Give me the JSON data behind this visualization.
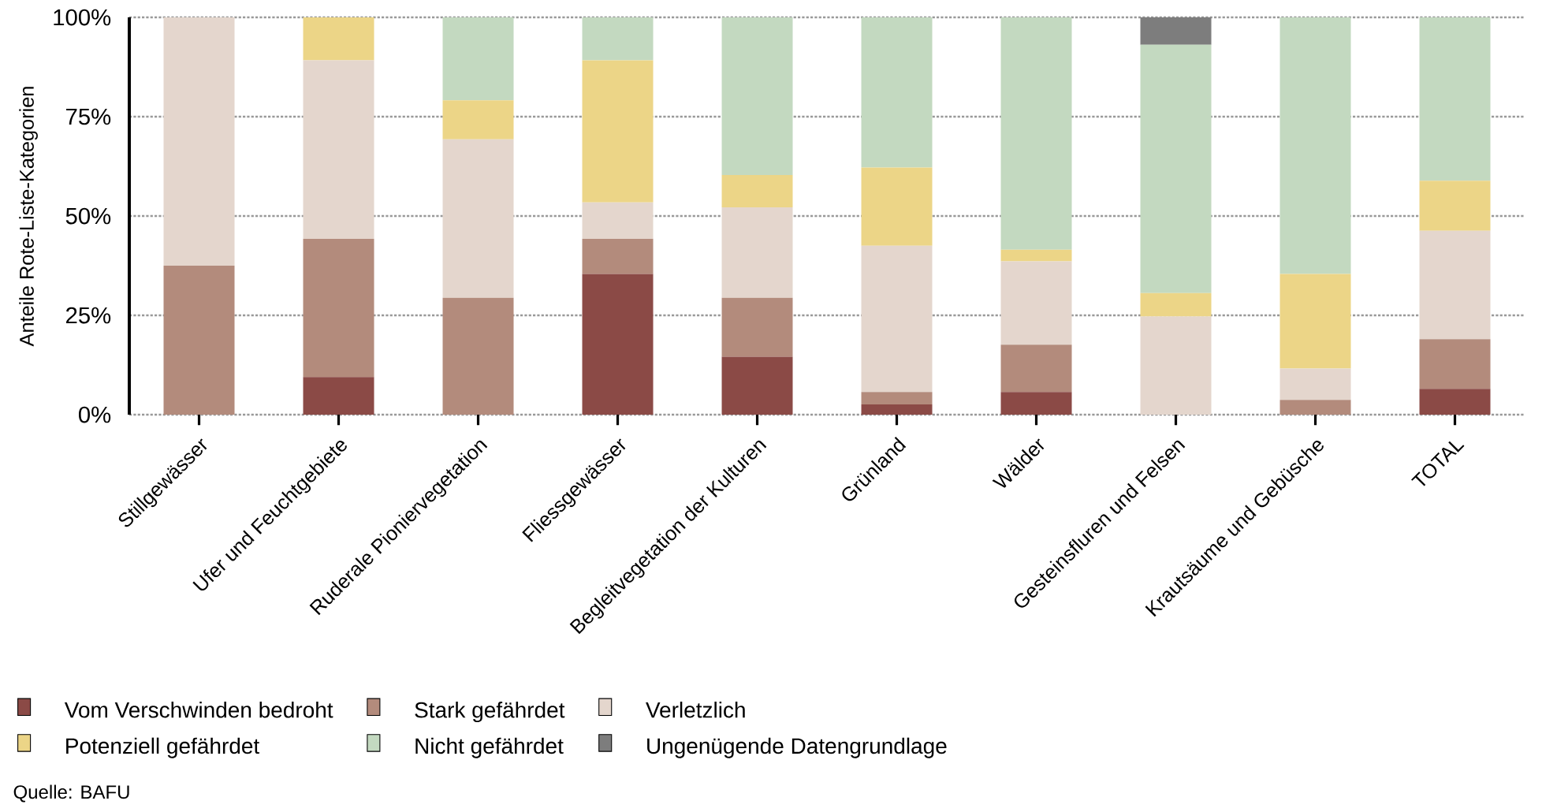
{
  "chart_data": {
    "type": "bar",
    "stacked": true,
    "ylabel": "Anteile Rote-Liste-Kategorien",
    "categories": [
      "Stillgewässer",
      "Ufer und Feuchtgebiete",
      "Ruderale Pioniervegetation",
      "Fliessgewässer",
      "Begleitvegetation der Kulturen",
      "Grünland",
      "Wälder",
      "Gesteinsfluren und Felsen",
      "Krautsäume und Gebüsche",
      "TOTAL"
    ],
    "series": [
      {
        "name": "Vom Verschwinden bedroht",
        "color": "#8b4a46",
        "values": [
          0,
          9.5,
          0,
          35.4,
          14.6,
          2.6,
          5.7,
          0,
          0,
          6.5
        ]
      },
      {
        "name": "Stark gefährdet",
        "color": "#b38b7c",
        "values": [
          37.5,
          34.8,
          29.4,
          8.9,
          14.8,
          3.1,
          11.9,
          0,
          3.7,
          12.5
        ]
      },
      {
        "name": "Verletzlich",
        "color": "#e4d6cd",
        "values": [
          62.5,
          44.9,
          39.9,
          9.1,
          22.8,
          36.8,
          21.0,
          24.7,
          7.9,
          27.3
        ]
      },
      {
        "name": "Potenziell gefährdet",
        "color": "#ecd587",
        "values": [
          0,
          10.8,
          9.8,
          35.8,
          8.1,
          19.7,
          2.9,
          5.9,
          23.8,
          12.6
        ]
      },
      {
        "name": "Nicht gefährdet",
        "color": "#c3d9c0",
        "values": [
          0,
          0,
          20.9,
          10.8,
          39.7,
          37.8,
          58.5,
          62.5,
          64.6,
          41.1
        ]
      },
      {
        "name": "Ungenügende Datengrundlage",
        "color": "#7d7d7d",
        "values": [
          0,
          0,
          0,
          0,
          0,
          0,
          0,
          6.9,
          0,
          0
        ]
      }
    ],
    "ylim": [
      0,
      100
    ],
    "yticks": [
      {
        "value": 0,
        "label": "0%"
      },
      {
        "value": 25,
        "label": "25%"
      },
      {
        "value": 50,
        "label": "50%"
      },
      {
        "value": 75,
        "label": "75%"
      },
      {
        "value": 100,
        "label": "100%"
      }
    ],
    "grid": "y",
    "legend": "bottom",
    "annotations": [
      "Quelle: BAFU"
    ]
  }
}
